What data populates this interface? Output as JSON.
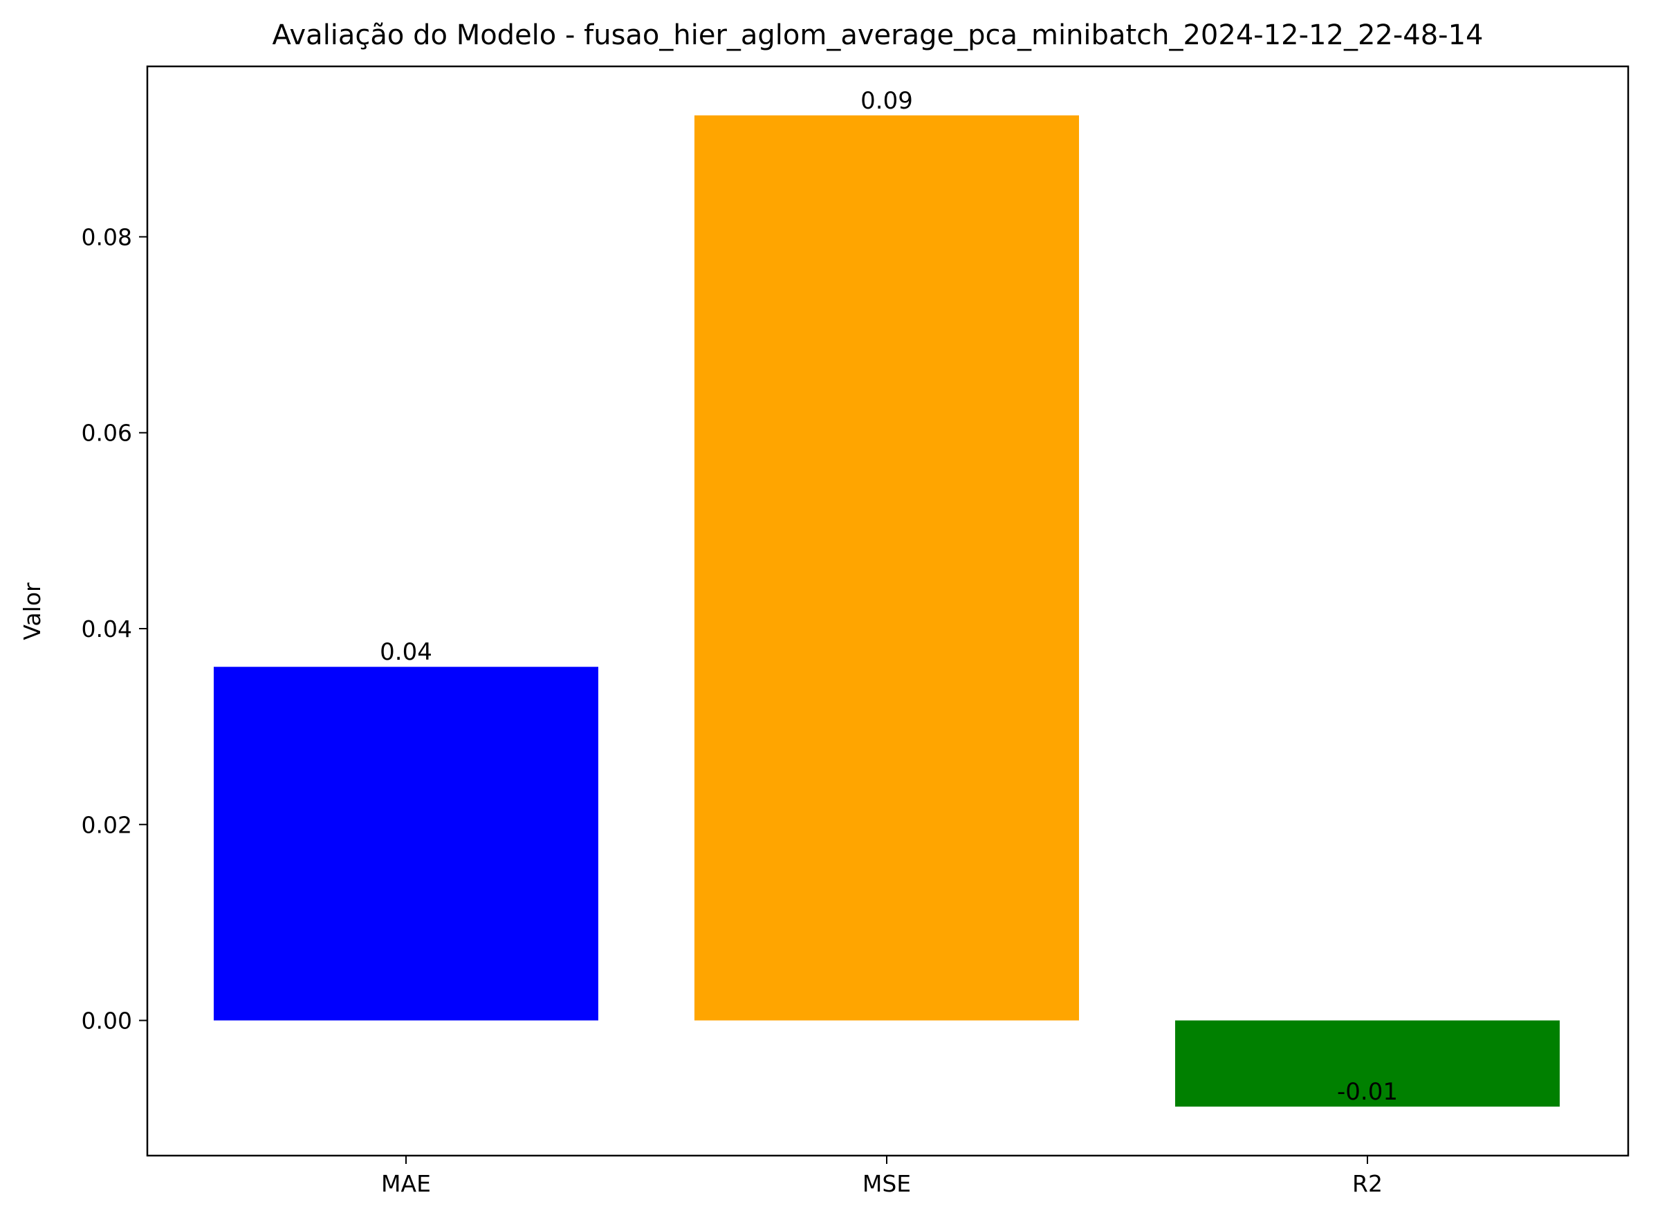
{
  "chart_data": {
    "type": "bar",
    "title": "Avaliação do Modelo - fusao_hier_aglom_average_pca_minibatch_2024-12-12_22-48-14",
    "xlabel": "",
    "ylabel": "Valor",
    "categories": [
      "MAE",
      "MSE",
      "R2"
    ],
    "values": [
      0.0361,
      0.0924,
      -0.0088
    ],
    "data_labels": [
      "0.04",
      "0.09",
      "-0.01"
    ],
    "colors": [
      "#0000ff",
      "#ffa500",
      "#008000"
    ],
    "ylim": [
      -0.0138,
      0.0974
    ],
    "yticks": [
      0.0,
      0.02,
      0.04,
      0.06,
      0.08
    ],
    "ytick_labels": [
      "0.00",
      "0.02",
      "0.04",
      "0.06",
      "0.08"
    ],
    "grid": false,
    "legend": "none"
  }
}
